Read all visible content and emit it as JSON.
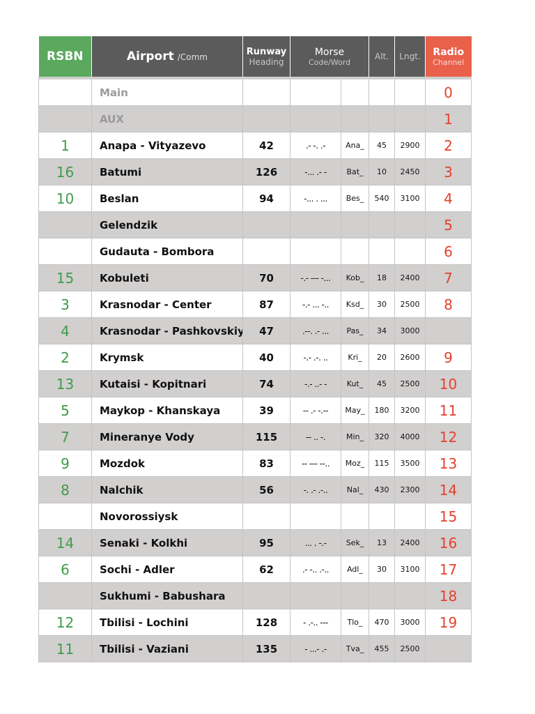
{
  "header": {
    "rsbn": "RSBN",
    "airport": "Airport",
    "comm": "/Comm",
    "runway": "Runway",
    "heading": "Heading",
    "morse": "Morse",
    "code_word": "Code/Word",
    "alt": "Alt.",
    "lngt": "Lngt.",
    "radio": "Radio",
    "channel": "Channel"
  },
  "table": {
    "rows": [
      [
        null,
        "Main",
        null,
        null,
        null,
        null,
        null,
        0
      ],
      [
        null,
        "AUX",
        null,
        null,
        null,
        null,
        null,
        1
      ],
      [
        1,
        "Anapa - Vityazevo",
        42,
        ".- -. .-",
        "Ana_",
        45,
        2900,
        2
      ],
      [
        16,
        "Batumi",
        126,
        "-... .- -",
        "Bat_",
        10,
        2450,
        3
      ],
      [
        10,
        "Beslan",
        94,
        "-... . ...",
        "Bes_",
        540,
        3100,
        4
      ],
      [
        null,
        "Gelendzik",
        null,
        null,
        null,
        null,
        null,
        5
      ],
      [
        null,
        "Gudauta - Bombora",
        null,
        null,
        null,
        null,
        null,
        6
      ],
      [
        15,
        "Kobuleti",
        70,
        "-.- --- -...",
        "Kob_",
        18,
        2400,
        7
      ],
      [
        3,
        "Krasnodar - Center",
        87,
        "-.- ... -..",
        "Ksd_",
        30,
        2500,
        8
      ],
      [
        4,
        "Krasnodar - Pashkovskiy",
        47,
        ".--. .- ...",
        "Pas_",
        34,
        3000,
        null
      ],
      [
        2,
        "Krymsk",
        40,
        "-.- .-. ..",
        "Kri_",
        20,
        2600,
        9
      ],
      [
        13,
        "Kutaisi - Kopitnari",
        74,
        "-.- ..- -",
        "Kut_",
        45,
        2500,
        10
      ],
      [
        5,
        "Maykop - Khanskaya",
        39,
        "-- .- -.--",
        "May_",
        180,
        3200,
        11
      ],
      [
        7,
        "Mineranye Vody",
        115,
        "-- .. -.",
        "Min_",
        320,
        4000,
        12
      ],
      [
        9,
        "Mozdok",
        83,
        "-- --- --..",
        "Moz_",
        115,
        3500,
        13
      ],
      [
        8,
        "Nalchik",
        56,
        "-. .- .-..",
        "Nal_",
        430,
        2300,
        14
      ],
      [
        null,
        "Novorossiysk",
        null,
        null,
        null,
        null,
        null,
        15
      ],
      [
        14,
        "Senaki - Kolkhi",
        95,
        "... . -.-",
        "Sek_",
        13,
        2400,
        16
      ],
      [
        6,
        "Sochi - Adler",
        62,
        ".- -.. .-..",
        "Adl_",
        30,
        3100,
        17
      ],
      [
        null,
        "Sukhumi - Babushara",
        null,
        null,
        null,
        null,
        null,
        18
      ],
      [
        12,
        "Tbilisi - Lochini",
        128,
        "- .-.. ---",
        "Tlo_",
        470,
        3000,
        19
      ],
      [
        11,
        "Tbilisi - Vaziani",
        135,
        "- ...- .-",
        "Tva_",
        455,
        2500,
        null
      ]
    ]
  }
}
